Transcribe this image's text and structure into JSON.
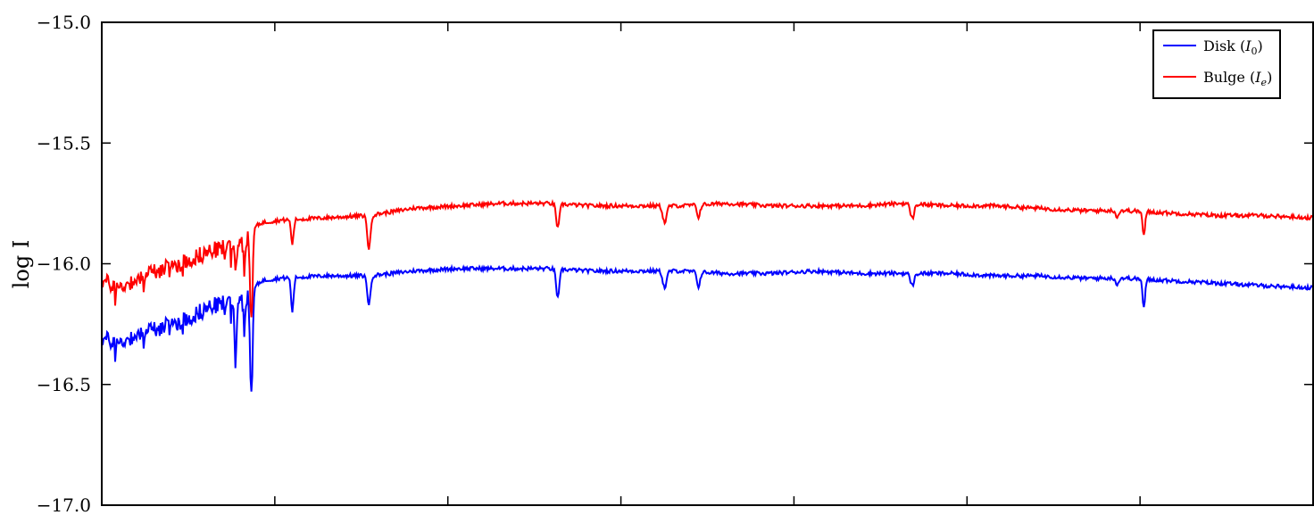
{
  "chart_data": {
    "type": "line",
    "ylabel": "log I",
    "ylim": [
      -17.0,
      -15.0
    ],
    "yticks": [
      -15.0,
      -15.5,
      -16.0,
      -16.5,
      -17.0
    ],
    "ytick_labels": [
      "−15.0",
      "−15.5",
      "−16.0",
      "−16.5",
      "−17.0"
    ],
    "xlim": [
      0,
      1360
    ],
    "x_tick_count": 6,
    "grid": false,
    "legend_position": "top-right",
    "series": [
      {
        "name": "Disk (I0)",
        "legend_label": {
          "text": "Disk (",
          "symbol": "I",
          "subscript": "0",
          "close": ")"
        },
        "color": "#0000ff",
        "base": -16.06,
        "noisy_until": 170,
        "x_samples": [
          0,
          20,
          40,
          60,
          80,
          100,
          120,
          140,
          160,
          170,
          180,
          200,
          250,
          300,
          350,
          400,
          450,
          500,
          550,
          600,
          650,
          700,
          750,
          800,
          850,
          900,
          950,
          1000,
          1050,
          1100,
          1150,
          1200,
          1250,
          1300,
          1360
        ],
        "values": [
          -16.31,
          -16.33,
          -16.29,
          -16.27,
          -16.25,
          -16.22,
          -16.18,
          -16.16,
          -16.14,
          -16.1,
          -16.07,
          -16.06,
          -16.05,
          -16.05,
          -16.03,
          -16.02,
          -16.02,
          -16.02,
          -16.03,
          -16.03,
          -16.03,
          -16.04,
          -16.04,
          -16.03,
          -16.04,
          -16.04,
          -16.04,
          -16.05,
          -16.05,
          -16.06,
          -16.06,
          -16.07,
          -16.08,
          -16.09,
          -16.1
        ],
        "dips": [
          {
            "x": 150,
            "depth": 0.27,
            "width": 1.5
          },
          {
            "x": 160,
            "depth": 0.1,
            "width": 1.5
          },
          {
            "x": 168,
            "depth": 0.42,
            "width": 2
          },
          {
            "x": 214,
            "depth": 0.14,
            "width": 2
          },
          {
            "x": 300,
            "depth": 0.12,
            "width": 2.5
          },
          {
            "x": 512,
            "depth": 0.12,
            "width": 2.5
          },
          {
            "x": 632,
            "depth": 0.07,
            "width": 3
          },
          {
            "x": 670,
            "depth": 0.06,
            "width": 2.5
          },
          {
            "x": 910,
            "depth": 0.05,
            "width": 3
          },
          {
            "x": 1140,
            "depth": 0.03,
            "width": 2
          },
          {
            "x": 1170,
            "depth": 0.12,
            "width": 2
          }
        ]
      },
      {
        "name": "Bulge (Ie)",
        "legend_label": {
          "text": "Bulge (",
          "symbol": "I",
          "subscript": "e",
          "close": ")"
        },
        "color": "#ff0000",
        "base": -15.82,
        "noisy_until": 170,
        "x_samples": [
          0,
          20,
          40,
          60,
          80,
          100,
          120,
          140,
          160,
          170,
          180,
          200,
          250,
          300,
          350,
          400,
          450,
          500,
          550,
          600,
          650,
          700,
          750,
          800,
          850,
          900,
          950,
          1000,
          1050,
          1100,
          1150,
          1200,
          1250,
          1300,
          1360
        ],
        "values": [
          -16.07,
          -16.1,
          -16.06,
          -16.03,
          -16.01,
          -15.98,
          -15.95,
          -15.93,
          -15.9,
          -15.85,
          -15.83,
          -15.82,
          -15.81,
          -15.8,
          -15.77,
          -15.76,
          -15.75,
          -15.75,
          -15.76,
          -15.76,
          -15.76,
          -15.75,
          -15.76,
          -15.76,
          -15.76,
          -15.75,
          -15.76,
          -15.76,
          -15.77,
          -15.78,
          -15.78,
          -15.79,
          -15.8,
          -15.8,
          -15.81
        ],
        "dips": [
          {
            "x": 150,
            "depth": 0.1,
            "width": 1.5
          },
          {
            "x": 160,
            "depth": 0.09,
            "width": 1.5
          },
          {
            "x": 168,
            "depth": 0.36,
            "width": 2
          },
          {
            "x": 214,
            "depth": 0.1,
            "width": 2
          },
          {
            "x": 300,
            "depth": 0.14,
            "width": 2.5
          },
          {
            "x": 512,
            "depth": 0.1,
            "width": 2.5
          },
          {
            "x": 632,
            "depth": 0.07,
            "width": 3
          },
          {
            "x": 670,
            "depth": 0.05,
            "width": 2.5
          },
          {
            "x": 910,
            "depth": 0.06,
            "width": 3
          },
          {
            "x": 1140,
            "depth": 0.03,
            "width": 2
          },
          {
            "x": 1170,
            "depth": 0.1,
            "width": 2
          }
        ]
      }
    ]
  }
}
